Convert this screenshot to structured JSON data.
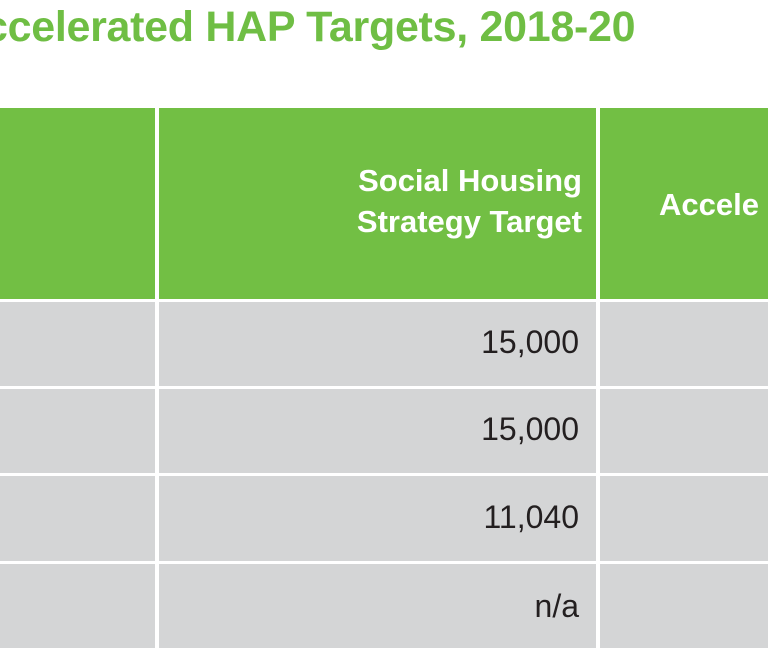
{
  "title": "ccelerated HAP Targets, 2018-20",
  "table": {
    "headers": {
      "col1": "",
      "col2_line1": "Social Housing",
      "col2_line2": "Strategy Target",
      "col3": "Accele"
    },
    "rows": [
      {
        "value": "15,000"
      },
      {
        "value": "15,000"
      },
      {
        "value": "11,040"
      },
      {
        "value": "n/a"
      }
    ]
  },
  "colors": {
    "header_green": "#72bf44",
    "title_green": "#6fbe44",
    "row_gray": "#d4d5d6",
    "text_dark": "#231f20"
  }
}
